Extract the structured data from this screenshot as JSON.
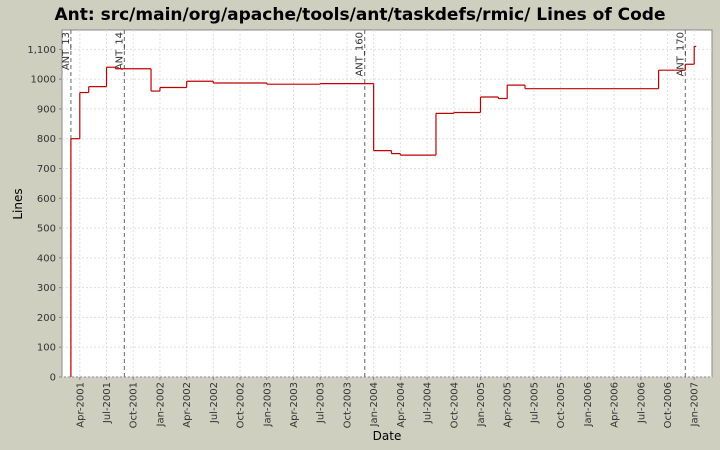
{
  "chart_data": {
    "type": "step",
    "title": "Ant: src/main/org/apache/tools/ant/taskdefs/rmic/ Lines of Code",
    "x_label": "Date",
    "y_label": "Lines",
    "series": [
      {
        "name": "Lines",
        "color": "#c00000",
        "x": [
          "2001-03",
          "2001-04",
          "2001-05",
          "2001-07",
          "2001-08",
          "2001-12",
          "2002-01",
          "2002-04",
          "2002-07",
          "2003-01",
          "2003-07",
          "2004-01",
          "2004-03",
          "2004-04",
          "2004-08",
          "2004-10",
          "2005-01",
          "2005-03",
          "2005-04",
          "2005-06",
          "2006-09",
          "2006-12",
          "2007-01"
        ],
        "values": [
          800,
          955,
          975,
          1040,
          1035,
          960,
          972,
          993,
          987,
          983,
          985,
          760,
          750,
          745,
          885,
          888,
          940,
          935,
          980,
          968,
          1030,
          1050,
          1110
        ]
      }
    ],
    "xlim": [
      "2001-02",
      "2007-03"
    ],
    "xticks": [
      {
        "value": "2001-04",
        "label": "Apr-2001"
      },
      {
        "value": "2001-07",
        "label": "Jul-2001"
      },
      {
        "value": "2001-10",
        "label": "Oct-2001"
      },
      {
        "value": "2002-01",
        "label": "Jan-2002"
      },
      {
        "value": "2002-04",
        "label": "Apr-2002"
      },
      {
        "value": "2002-07",
        "label": "Jul-2002"
      },
      {
        "value": "2002-10",
        "label": "Oct-2002"
      },
      {
        "value": "2003-01",
        "label": "Jan-2003"
      },
      {
        "value": "2003-04",
        "label": "Apr-2003"
      },
      {
        "value": "2003-07",
        "label": "Jul-2003"
      },
      {
        "value": "2003-10",
        "label": "Oct-2003"
      },
      {
        "value": "2004-01",
        "label": "Jan-2004"
      },
      {
        "value": "2004-04",
        "label": "Apr-2004"
      },
      {
        "value": "2004-07",
        "label": "Jul-2004"
      },
      {
        "value": "2004-10",
        "label": "Oct-2004"
      },
      {
        "value": "2005-01",
        "label": "Jan-2005"
      },
      {
        "value": "2005-04",
        "label": "Apr-2005"
      },
      {
        "value": "2005-07",
        "label": "Jul-2005"
      },
      {
        "value": "2005-10",
        "label": "Oct-2005"
      },
      {
        "value": "2006-01",
        "label": "Jan-2006"
      },
      {
        "value": "2006-04",
        "label": "Apr-2006"
      },
      {
        "value": "2006-07",
        "label": "Jul-2006"
      },
      {
        "value": "2006-10",
        "label": "Oct-2006"
      },
      {
        "value": "2007-01",
        "label": "Jan-2007"
      }
    ],
    "ylim": [
      0,
      1165
    ],
    "yticks": [
      0,
      100,
      200,
      300,
      400,
      500,
      600,
      700,
      800,
      900,
      1000,
      {
        "value": 1100,
        "label": "1,100"
      }
    ],
    "grid": true,
    "markers": [
      {
        "label": "ANT_13",
        "x": "2001-03"
      },
      {
        "label": "ANT_14",
        "x": "2001-09"
      },
      {
        "label": "ANT_160",
        "x": "2003-12"
      },
      {
        "label": "ANT_170",
        "x": "2006-12"
      }
    ]
  }
}
